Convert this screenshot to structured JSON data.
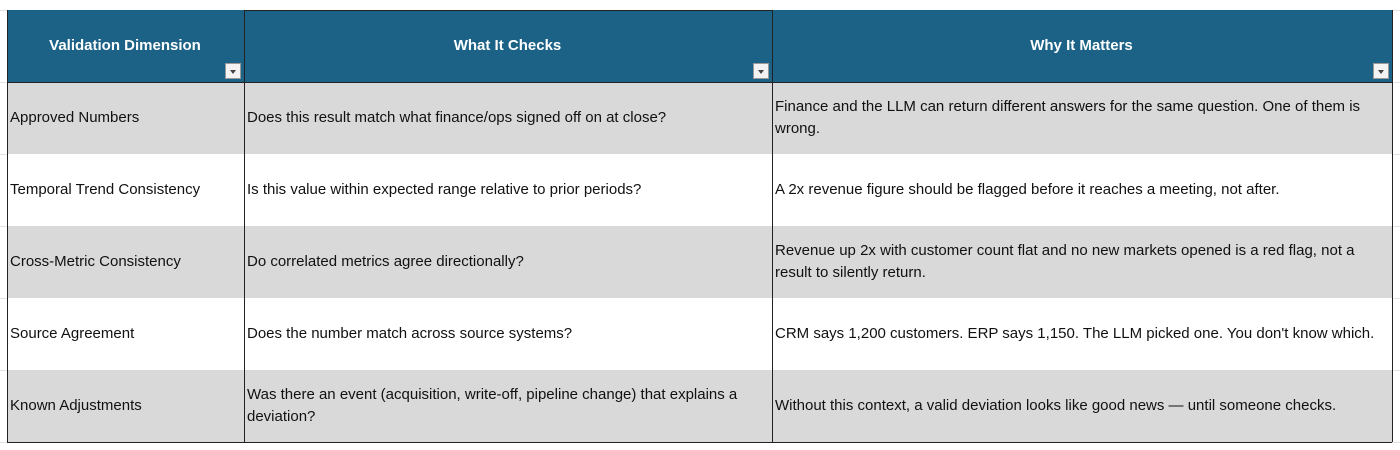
{
  "table": {
    "columns": [
      "Validation Dimension",
      "What It Checks",
      "Why It Matters"
    ],
    "rows": [
      [
        "Approved Numbers",
        "Does this result match what finance/ops signed off on at close?",
        "Finance and the LLM can return different answers for the same question. One of them is wrong."
      ],
      [
        "Temporal Trend Consistency",
        "Is this value within expected range relative to prior periods?",
        "A 2x revenue figure should be flagged before it reaches a meeting, not after."
      ],
      [
        "Cross-Metric Consistency",
        "Do correlated metrics agree directionally?",
        "Revenue up 2x with customer count flat and no new markets opened is a red flag, not a result to silently return."
      ],
      [
        "Source Agreement",
        "Does the number match across source systems?",
        "CRM says 1,200 customers. ERP says 1,150. The LLM picked one. You don't know which."
      ],
      [
        "Known Adjustments",
        "Was there an event (acquisition, write-off, pipeline change) that explains a deviation?",
        "Without this context, a valid deviation looks like good news — until someone checks."
      ]
    ]
  }
}
